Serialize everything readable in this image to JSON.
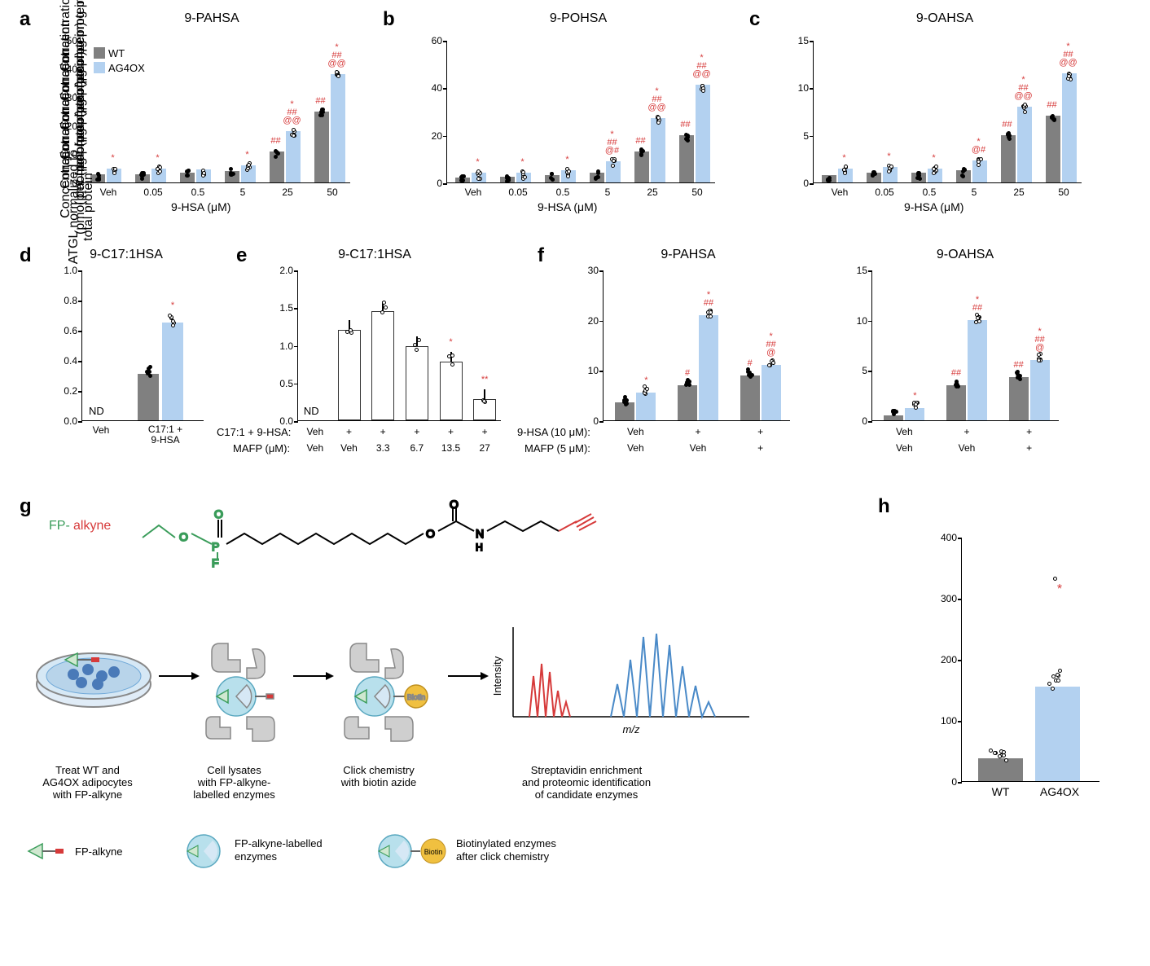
{
  "colors": {
    "wt": "#808080",
    "ag4ox": "#b3d1f0",
    "white": "#ffffff",
    "annotation": "#d63a3a",
    "axis": "#000000",
    "grid": "#e0e0e0"
  },
  "fontsize": {
    "panel_label": 24,
    "chart_title": 16,
    "axis_label": 14,
    "tick_label": 12,
    "annotation": 11,
    "diagram_text": 13
  },
  "panels": {
    "a": {
      "label": "a",
      "title": "9-PAHSA",
      "ylabel": "Concentration\n(pmol per mg protein)",
      "xlabel": "9-HSA (μM)",
      "ylim": [
        0,
        50
      ],
      "ytick_step": 10,
      "categories": [
        "Veh",
        "0.05",
        "0.5",
        "5",
        "25",
        "50"
      ],
      "wt_values": [
        3,
        3,
        3.5,
        4,
        11,
        25
      ],
      "ag4ox_values": [
        5,
        5,
        4.5,
        6,
        18,
        38
      ],
      "legend": {
        "wt": "WT",
        "ag4ox": "AG4OX"
      },
      "annotations": {
        "Veh_ag": "*",
        "0.05_ag": "*",
        "5_ag": "*",
        "25_wt": "##",
        "25_ag": "* ## @@",
        "50_wt": "##",
        "50_ag": "* ## @@"
      }
    },
    "b": {
      "label": "b",
      "title": "9-POHSA",
      "ylabel": "Concentration\n(pmol per mg protein)",
      "xlabel": "9-HSA (μM)",
      "ylim": [
        0,
        60
      ],
      "ytick_step": 20,
      "categories": [
        "Veh",
        "0.05",
        "0.5",
        "5",
        "25",
        "50"
      ],
      "wt_values": [
        2,
        2.5,
        3,
        4,
        13,
        20
      ],
      "ag4ox_values": [
        4,
        4,
        5,
        9,
        27,
        41
      ],
      "annotations": {
        "Veh_ag": "*",
        "0.05_ag": "*",
        "0.5_ag": "*",
        "5_ag": "* ## @#",
        "25_wt": "##",
        "25_ag": "* ## @@",
        "50_wt": "##",
        "50_ag": "* ## @@"
      }
    },
    "c": {
      "label": "c",
      "title": "9-OAHSA",
      "ylabel": "Concentration\n(pmol per mg protein)",
      "xlabel": "9-HSA (μM)",
      "ylim": [
        0,
        15
      ],
      "ytick_step": 5,
      "categories": [
        "Veh",
        "0.05",
        "0.5",
        "5",
        "25",
        "50"
      ],
      "wt_values": [
        0.8,
        1,
        1,
        1.3,
        5,
        7
      ],
      "ag4ox_values": [
        1.5,
        1.6,
        1.5,
        2.3,
        8,
        11.5
      ],
      "annotations": {
        "Veh_ag": "*",
        "0.05_ag": "*",
        "0.5_ag": "*",
        "5_ag": "* @#",
        "25_wt": "##",
        "25_ag": "* ## @@",
        "50_wt": "##",
        "50_ag": "* ## @@"
      }
    },
    "d": {
      "label": "d",
      "title": "9-C17:1HSA",
      "ylabel": "Concentration\n(pmol per mg protein)",
      "ylim": [
        0,
        1.0
      ],
      "ytick_step": 0.2,
      "categories": [
        "Veh",
        "C17:1 + 9-HSA"
      ],
      "wt_values": [
        0,
        0.31
      ],
      "ag4ox_values": [
        0,
        0.65
      ],
      "nd_label": "ND",
      "annotations": {
        "ag": "*"
      }
    },
    "e": {
      "label": "e",
      "title": "9-C17:1HSA",
      "ylabel": "Concentration\n(pmol per mg protein)",
      "ylim": [
        0,
        2.0
      ],
      "ytick_step": 0.5,
      "row1_label": "C17:1 + 9-HSA:",
      "row2_label": "MAFP (μM):",
      "categories_r1": [
        "Veh",
        "+",
        "+",
        "+",
        "+",
        "+"
      ],
      "categories_r2": [
        "Veh",
        "Veh",
        "3.3",
        "6.7",
        "13.5",
        "27"
      ],
      "values": [
        0,
        1.2,
        1.45,
        0.98,
        0.78,
        0.28
      ],
      "nd_label": "ND",
      "annotations": {
        "4": "*",
        "5": "**"
      }
    },
    "f": {
      "label": "f",
      "subpanels": [
        {
          "title": "9-PAHSA",
          "ylabel": "Concentration\n(pmol per mg protein)",
          "ylim": [
            0,
            30
          ],
          "ytick_step": 10,
          "row1_label": "9-HSA (10 μM):",
          "row2_label": "MAFP (5 μM):",
          "categories_r1": [
            "Veh",
            "+",
            "+"
          ],
          "categories_r2": [
            "Veh",
            "Veh",
            "+"
          ],
          "wt_values": [
            3.5,
            7,
            9
          ],
          "ag4ox_values": [
            5.5,
            21,
            11
          ],
          "annotations": {
            "0_ag": "*",
            "1_wt": "#",
            "1_ag": "* ##",
            "2_wt": "#",
            "2_ag": "* ## @"
          }
        },
        {
          "title": "9-OAHSA",
          "ylim": [
            0,
            15
          ],
          "ytick_step": 5,
          "categories_r1": [
            "Veh",
            "+",
            "+"
          ],
          "categories_r2": [
            "Veh",
            "Veh",
            "+"
          ],
          "wt_values": [
            0.5,
            3.5,
            4.3
          ],
          "ag4ox_values": [
            1.2,
            10,
            6
          ],
          "annotations": {
            "0_ag": "*",
            "1_wt": "##",
            "1_ag": "* ##",
            "2_wt": "##",
            "2_ag": "* ## @"
          }
        }
      ]
    },
    "g": {
      "label": "g",
      "fp_alkyne_label": "FP-alkyne",
      "fp_color": "#3a9c5a",
      "alkyne_color": "#d63a3a",
      "biotin_label": "Biotin",
      "biotin_color": "#f0c040",
      "intensity_label": "Intensity",
      "mz_label": "m/z",
      "steps": [
        "Treat WT and\nAG4OX adipocytes\nwith FP-alkyne",
        "Cell lysates\nwith FP-alkyne-\nlabelled enzymes",
        "Click chemistry\nwith biotin azide",
        "Streptavidin enrichment\nand proteomic identification\nof candidate enzymes"
      ],
      "legend_items": [
        {
          "icon": "fp-alkyne",
          "text": "FP-alkyne"
        },
        {
          "icon": "labelled",
          "text": "FP-alkyne-labelled\nenzymes"
        },
        {
          "icon": "biotin",
          "text": "Biotinylated enzymes\nafter click chemistry"
        }
      ]
    },
    "h": {
      "label": "h",
      "ylabel": "ATGL normalized to\ntotal protein",
      "ylim": [
        0,
        400
      ],
      "ytick_step": 100,
      "categories": [
        "WT",
        "AG4OX"
      ],
      "values": [
        38,
        155
      ],
      "annotations": {
        "ag": "*"
      }
    }
  }
}
